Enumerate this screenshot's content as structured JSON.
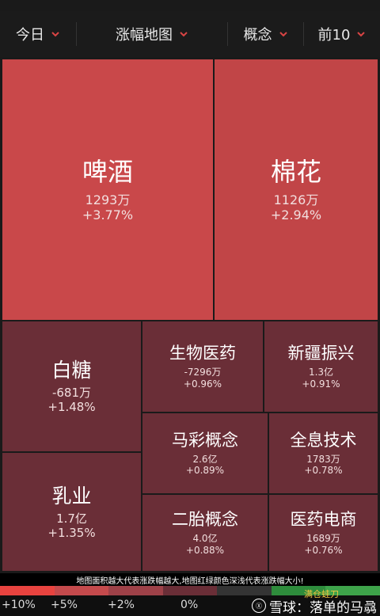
{
  "toolbar": {
    "today": "今日",
    "map_type": "涨幅地图",
    "category": "概念",
    "top": "前10"
  },
  "tiles": [
    {
      "name": "啤酒",
      "value": "1293万",
      "pct": "+3.77%",
      "color": "#c9484a"
    },
    {
      "name": "棉花",
      "value": "1126万",
      "pct": "+2.94%",
      "color": "#c14547"
    },
    {
      "name": "白糖",
      "value": "-681万",
      "pct": "+1.48%",
      "color": "#6a2e37"
    },
    {
      "name": "生物医药",
      "value": "-7296万",
      "pct": "+0.96%",
      "color": "#6a2e37"
    },
    {
      "name": "新疆振兴",
      "value": "1.3亿",
      "pct": "+0.91%",
      "color": "#6a2e37"
    },
    {
      "name": "马彩概念",
      "value": "2.6亿",
      "pct": "+0.89%",
      "color": "#6a2e37"
    },
    {
      "name": "全息技术",
      "value": "1783万",
      "pct": "+0.78%",
      "color": "#6a2e37"
    },
    {
      "name": "乳业",
      "value": "1.7亿",
      "pct": "+1.35%",
      "color": "#6a2e37"
    },
    {
      "name": "二胎概念",
      "value": "4.0亿",
      "pct": "+0.88%",
      "color": "#6a2e37"
    },
    {
      "name": "医药电商",
      "value": "1689万",
      "pct": "+0.76%",
      "color": "#6a2e37"
    }
  ],
  "legend": {
    "note": "地图面积越大代表涨跌幅越大,地图红绿颜色深浅代表涨跌幅大小!",
    "scale_labels": [
      "+10%",
      "+5%",
      "+2%",
      "0%"
    ],
    "scale_colors": [
      "#e8433f",
      "#c44a4c",
      "#9e4148",
      "#6a2e37",
      "#343434",
      "#2e8c3c",
      "#3ea34a"
    ]
  },
  "watermark": {
    "text": "雪球：落单的马骉",
    "small": "满仓蛙刀",
    "logo": "Ⓧ"
  }
}
